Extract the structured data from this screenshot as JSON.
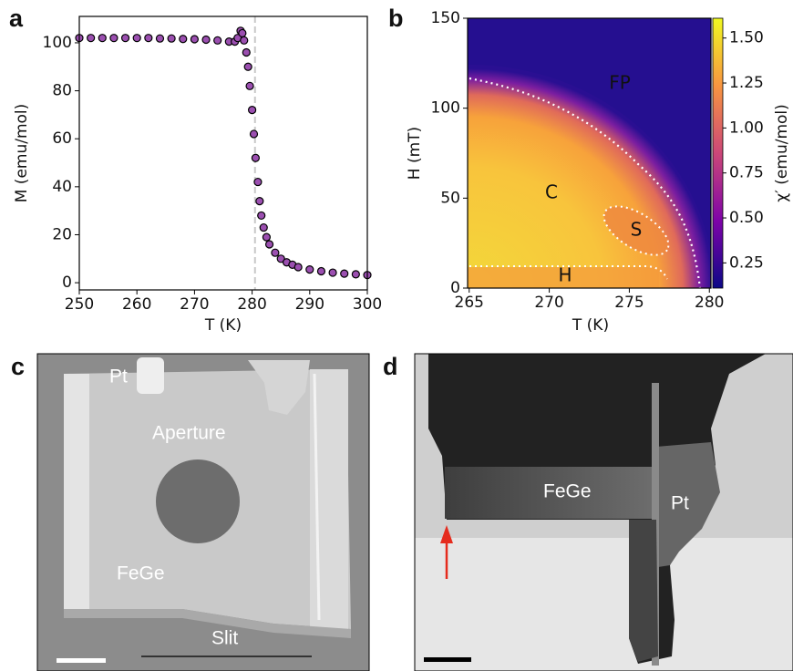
{
  "chart_data": [
    {
      "type": "scatter",
      "panel": "a",
      "xlabel": "T (K)",
      "ylabel": "M (emu/mol)",
      "xlim": [
        250,
        300
      ],
      "xticks": [
        250,
        260,
        270,
        280,
        290,
        300
      ],
      "ylim": [
        -3,
        111
      ],
      "yticks": [
        0,
        20,
        40,
        60,
        80,
        100
      ],
      "color": "#9b4fb0",
      "edgecolor": "#000000",
      "reference_x": 280.5,
      "x": [
        250,
        252,
        254,
        256,
        258,
        260,
        262,
        264,
        266,
        268,
        270,
        272,
        274,
        276,
        277,
        277.5,
        278,
        278.3,
        278.6,
        279,
        279.3,
        279.6,
        280,
        280.3,
        280.6,
        281,
        281.3,
        281.6,
        282,
        282.5,
        283,
        284,
        285,
        286,
        287,
        288,
        290,
        292,
        294,
        296,
        298,
        300
      ],
      "values": [
        102,
        102,
        102,
        102,
        102,
        102,
        102,
        101.8,
        101.8,
        101.6,
        101.5,
        101.3,
        101,
        100.5,
        100.5,
        102,
        105,
        104,
        101,
        96,
        90,
        82,
        72,
        62,
        52,
        42,
        34,
        28,
        23,
        19,
        16,
        12.5,
        10,
        8.5,
        7.5,
        6.5,
        5.5,
        4.8,
        4.2,
        3.8,
        3.5,
        3.2
      ]
    },
    {
      "type": "heatmap",
      "panel": "b",
      "xlabel": "T (K)",
      "ylabel": "H (mT)",
      "colorbar_label": "χ′ (emu/mol)",
      "colormap": "plasma",
      "xlim": [
        264.9,
        280.1
      ],
      "xticks": [
        265,
        270,
        275,
        280
      ],
      "ylim": [
        0,
        150
      ],
      "yticks": [
        0,
        50,
        100,
        150
      ],
      "clim": [
        0.11,
        1.61
      ],
      "cticks": [
        0.25,
        {
          "value": 0.5,
          "label": "0.50"
        },
        0.75,
        {
          "value": 1,
          "label": "1.00"
        },
        1.25,
        {
          "value": 1.5,
          "label": "1.50"
        }
      ],
      "annotations": [
        "FP",
        "C",
        "S",
        "H"
      ]
    }
  ],
  "images": [
    {
      "panel": "c",
      "labels": [
        "Pt",
        "Aperture",
        "FeGe",
        "Slit"
      ]
    },
    {
      "panel": "d",
      "labels": [
        "FeGe",
        "Pt"
      ]
    }
  ]
}
